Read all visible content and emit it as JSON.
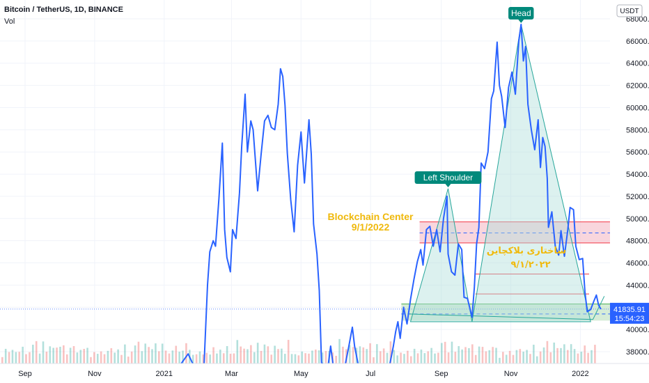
{
  "header": {
    "symbol": "Bitcoin / TetherUS, 1D, BINANCE",
    "volume_label": "Vol"
  },
  "currency_badge": "USDT",
  "last_price": {
    "value": "41835.91",
    "countdown": "15:54:23"
  },
  "colors": {
    "price_line": "#2962ff",
    "pattern_fill": "#b2dfdb",
    "pattern_stroke": "#26a69a",
    "resistance_zone": "#f7c5cf",
    "resistance_line": "#f23645",
    "support_zone": "#c8e6c9",
    "label_bg": "#00897b",
    "annotation_text": "#f0b90b",
    "volume_up": "#26a69a",
    "volume_down": "#ef5350"
  },
  "annotations": {
    "head": "Head",
    "left_shoulder": "Left Shoulder",
    "blockchain_center": "Blockchain Center",
    "blockchain_date": "9/1/2022",
    "persian_title": "ساختاری بلاکچاین",
    "persian_date": "۹/۱/۲۰۲۲"
  },
  "chart_data": {
    "type": "line",
    "title": "Bitcoin / TetherUS, 1D, BINANCE",
    "xlabel": "",
    "ylabel": "",
    "ylim": [
      36500,
      69500
    ],
    "grid": true,
    "yticks": [
      38000,
      40000,
      42000,
      44000,
      46000,
      48000,
      50000,
      52000,
      54000,
      56000,
      58000,
      60000,
      62000,
      64000,
      66000,
      68000
    ],
    "ytick_labels": [
      "38000.00",
      "40000.00",
      "42000.00",
      "44000.00",
      "46000.00",
      "48000.00",
      "50000.00",
      "52000.00",
      "54000.00",
      "56000.00",
      "58000.00",
      "60000.00",
      "62000.00",
      "64000.00",
      "66000.00",
      "68000.00"
    ],
    "xticks": [
      {
        "label": "Sep",
        "x": "2020-09-01"
      },
      {
        "label": "Nov",
        "x": "2020-11-01"
      },
      {
        "label": "2021",
        "x": "2021-01-01"
      },
      {
        "label": "Mar",
        "x": "2021-03-01"
      },
      {
        "label": "May",
        "x": "2021-05-01"
      },
      {
        "label": "Jul",
        "x": "2021-07-01"
      },
      {
        "label": "Sep",
        "x": "2021-09-01"
      },
      {
        "label": "Nov",
        "x": "2021-11-01"
      },
      {
        "label": "2022",
        "x": "2022-01-01"
      }
    ],
    "x_range": [
      "2020-08-10",
      "2022-01-27"
    ],
    "series": [
      {
        "points": [
          [
            "2021-01-16",
            36500
          ],
          [
            "2021-01-22",
            37800
          ],
          [
            "2021-01-26",
            36500
          ],
          [
            "2021-02-05",
            36500
          ],
          [
            "2021-02-08",
            44000
          ],
          [
            "2021-02-10",
            47000
          ],
          [
            "2021-02-13",
            48000
          ],
          [
            "2021-02-15",
            47500
          ],
          [
            "2021-02-18",
            51800
          ],
          [
            "2021-02-21",
            56800
          ],
          [
            "2021-02-23",
            49000
          ],
          [
            "2021-02-25",
            46500
          ],
          [
            "2021-02-28",
            45200
          ],
          [
            "2021-03-02",
            49000
          ],
          [
            "2021-03-05",
            48200
          ],
          [
            "2021-03-08",
            52300
          ],
          [
            "2021-03-10",
            56500
          ],
          [
            "2021-03-13",
            61200
          ],
          [
            "2021-03-15",
            56000
          ],
          [
            "2021-03-18",
            58800
          ],
          [
            "2021-03-20",
            58000
          ],
          [
            "2021-03-24",
            52500
          ],
          [
            "2021-03-27",
            55800
          ],
          [
            "2021-03-30",
            58800
          ],
          [
            "2021-04-02",
            59300
          ],
          [
            "2021-04-05",
            58200
          ],
          [
            "2021-04-08",
            58000
          ],
          [
            "2021-04-11",
            60300
          ],
          [
            "2021-04-13",
            63500
          ],
          [
            "2021-04-15",
            62800
          ],
          [
            "2021-04-17",
            60200
          ],
          [
            "2021-04-19",
            55900
          ],
          [
            "2021-04-22",
            51700
          ],
          [
            "2021-04-25",
            48800
          ],
          [
            "2021-04-28",
            54800
          ],
          [
            "2021-05-01",
            57800
          ],
          [
            "2021-05-04",
            53200
          ],
          [
            "2021-05-08",
            58900
          ],
          [
            "2021-05-10",
            55800
          ],
          [
            "2021-05-12",
            49500
          ],
          [
            "2021-05-15",
            46800
          ],
          [
            "2021-05-17",
            43500
          ],
          [
            "2021-05-19",
            37000
          ],
          [
            "2021-05-20",
            36500
          ],
          [
            "2021-05-25",
            36500
          ],
          [
            "2021-05-27",
            38500
          ],
          [
            "2021-05-29",
            36500
          ],
          [
            "2021-06-09",
            36500
          ],
          [
            "2021-06-12",
            38500
          ],
          [
            "2021-06-15",
            40200
          ],
          [
            "2021-06-17",
            38500
          ],
          [
            "2021-06-20",
            36500
          ],
          [
            "2021-07-18",
            36500
          ],
          [
            "2021-07-21",
            38500
          ],
          [
            "2021-07-23",
            39800
          ],
          [
            "2021-07-25",
            40700
          ],
          [
            "2021-07-27",
            39200
          ],
          [
            "2021-07-30",
            42000
          ],
          [
            "2021-08-02",
            40500
          ],
          [
            "2021-08-05",
            42700
          ],
          [
            "2021-08-08",
            44500
          ],
          [
            "2021-08-11",
            46100
          ],
          [
            "2021-08-14",
            47200
          ],
          [
            "2021-08-16",
            45800
          ],
          [
            "2021-08-19",
            49000
          ],
          [
            "2021-08-22",
            49300
          ],
          [
            "2021-08-25",
            47500
          ],
          [
            "2021-08-28",
            49000
          ],
          [
            "2021-08-31",
            47000
          ],
          [
            "2021-09-03",
            50000
          ],
          [
            "2021-09-06",
            52000
          ],
          [
            "2021-09-07",
            46800
          ],
          [
            "2021-09-10",
            45200
          ],
          [
            "2021-09-13",
            44900
          ],
          [
            "2021-09-16",
            47700
          ],
          [
            "2021-09-19",
            47200
          ],
          [
            "2021-09-21",
            42900
          ],
          [
            "2021-09-24",
            42800
          ],
          [
            "2021-09-28",
            41100
          ],
          [
            "2021-09-30",
            43800
          ],
          [
            "2021-10-02",
            47700
          ],
          [
            "2021-10-04",
            49200
          ],
          [
            "2021-10-06",
            55000
          ],
          [
            "2021-10-09",
            54500
          ],
          [
            "2021-10-12",
            56000
          ],
          [
            "2021-10-15",
            60800
          ],
          [
            "2021-10-17",
            61500
          ],
          [
            "2021-10-20",
            65900
          ],
          [
            "2021-10-22",
            62000
          ],
          [
            "2021-10-24",
            61000
          ],
          [
            "2021-10-27",
            58200
          ],
          [
            "2021-10-30",
            61800
          ],
          [
            "2021-11-02",
            63200
          ],
          [
            "2021-11-05",
            61200
          ],
          [
            "2021-11-08",
            66000
          ],
          [
            "2021-11-10",
            67500
          ],
          [
            "2021-11-12",
            64200
          ],
          [
            "2021-11-14",
            65500
          ],
          [
            "2021-11-16",
            60300
          ],
          [
            "2021-11-19",
            58000
          ],
          [
            "2021-11-22",
            56200
          ],
          [
            "2021-11-25",
            58900
          ],
          [
            "2021-11-27",
            54600
          ],
          [
            "2021-11-29",
            57300
          ],
          [
            "2021-12-01",
            56500
          ],
          [
            "2021-12-03",
            53600
          ],
          [
            "2021-12-04",
            49200
          ],
          [
            "2021-12-07",
            50600
          ],
          [
            "2021-12-10",
            47500
          ],
          [
            "2021-12-13",
            46700
          ],
          [
            "2021-12-15",
            48900
          ],
          [
            "2021-12-18",
            46600
          ],
          [
            "2021-12-21",
            49000
          ],
          [
            "2021-12-23",
            51000
          ],
          [
            "2021-12-26",
            50800
          ],
          [
            "2021-12-28",
            47500
          ],
          [
            "2021-12-31",
            46300
          ],
          [
            "2022-01-03",
            46400
          ],
          [
            "2022-01-05",
            43400
          ],
          [
            "2022-01-07",
            41600
          ],
          [
            "2022-01-10",
            41800
          ],
          [
            "2022-01-13",
            42600
          ],
          [
            "2022-01-15",
            43100
          ],
          [
            "2022-01-17",
            42200
          ],
          [
            "2022-01-19",
            41835.91
          ]
        ]
      }
    ],
    "head_and_shoulders": {
      "left_shoulder": [
        [
          "2021-08-05",
          40700
        ],
        [
          "2021-09-07",
          52700
        ],
        [
          "2021-09-28",
          40700
        ]
      ],
      "head": [
        [
          "2021-09-28",
          40700
        ],
        [
          "2021-11-10",
          67500
        ],
        [
          "2022-01-10",
          40700
        ]
      ],
      "neckline": [
        [
          "2021-08-03",
          41400
        ],
        [
          "2022-01-12",
          40900
        ]
      ]
    },
    "horizontal_levels": {
      "resistance_zone": [
        47800,
        49700
      ],
      "resistance_midline": 48700,
      "resistance_lines": [
        45000,
        43200
      ],
      "support_zone": [
        40800,
        42300
      ],
      "support_midline": 41400,
      "last_price_line": 41835.91
    },
    "volume": {
      "max_volume_fraction_of_panel": 1.0,
      "note_free_values": [
        0.32,
        0.55,
        0.28,
        0.74,
        0.46,
        0.38,
        0.61,
        0.44,
        0.52,
        0.35,
        0.68,
        0.41,
        0.57,
        0.3,
        0.49,
        0.63,
        0.37,
        0.45,
        0.71,
        0.33,
        0.58,
        0.42,
        0.5,
        0.39,
        0.66,
        0.47,
        0.36,
        0.54,
        0.43,
        0.6
      ]
    }
  }
}
